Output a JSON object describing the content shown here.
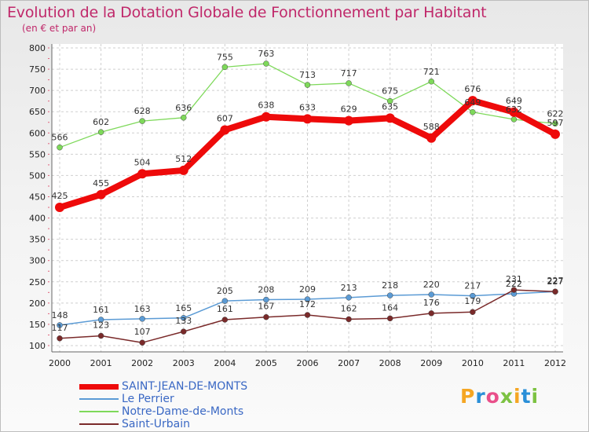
{
  "chart_data": {
    "type": "line",
    "title": "Evolution de la Dotation Globale de Fonctionnement par Habitant",
    "subtitle": "(en € et par an)",
    "xlabel": "",
    "ylabel": "",
    "ylim": [
      100,
      800
    ],
    "yticks": [
      100,
      150,
      200,
      250,
      300,
      350,
      400,
      450,
      500,
      550,
      600,
      650,
      700,
      750,
      800
    ],
    "x": [
      "2000",
      "2001",
      "2002",
      "2003",
      "2004",
      "2005",
      "2006",
      "2007",
      "2008",
      "2009",
      "2010",
      "2011",
      "2012"
    ],
    "grid": true,
    "legend_position": "bottom-left",
    "series": [
      {
        "name": "Notre-Dame-de-Monts",
        "color": "#7ed95a",
        "values": [
          566,
          602,
          628,
          636,
          755,
          763,
          713,
          717,
          675,
          721,
          649,
          632,
          622
        ],
        "labels": [
          "566",
          "602",
          "628",
          "636",
          "755",
          "763",
          "713",
          "717",
          "675",
          "721",
          "649",
          "632",
          "622"
        ]
      },
      {
        "name": "SAINT-JEAN-DE-MONTS",
        "color": "#ee0a0a",
        "values": [
          425,
          455,
          504,
          512,
          607,
          638,
          633,
          629,
          635,
          588,
          676,
          649,
          597
        ],
        "labels": [
          "425",
          "455",
          "504",
          "512",
          "607",
          "638",
          "633",
          "629",
          "635",
          "588",
          "676",
          "649",
          "597"
        ]
      },
      {
        "name": "Le Perrier",
        "color": "#5b9bd5",
        "values": [
          148,
          161,
          163,
          165,
          205,
          208,
          209,
          213,
          218,
          220,
          217,
          222,
          227
        ],
        "labels": [
          "148",
          "161",
          "163",
          "165",
          "205",
          "208",
          "209",
          "213",
          "218",
          "220",
          "217",
          "222",
          "227"
        ]
      },
      {
        "name": "Saint-Urbain",
        "color": "#7a2a2a",
        "values": [
          117,
          123,
          107,
          133,
          161,
          167,
          172,
          162,
          164,
          176,
          179,
          231,
          227
        ],
        "labels": [
          "117",
          "123",
          "107",
          "133",
          "161",
          "167",
          "172",
          "162",
          "164",
          "176",
          "179",
          "231",
          "227"
        ]
      }
    ]
  },
  "legend": [
    {
      "label": "SAINT-JEAN-DE-MONTS",
      "color": "#ee0a0a"
    },
    {
      "label": "Le Perrier",
      "color": "#5b9bd5"
    },
    {
      "label": "Notre-Dame-de-Monts",
      "color": "#7ed95a"
    },
    {
      "label": "Saint-Urbain",
      "color": "#7a2a2a"
    }
  ],
  "logo": {
    "text": "Proxiti"
  }
}
